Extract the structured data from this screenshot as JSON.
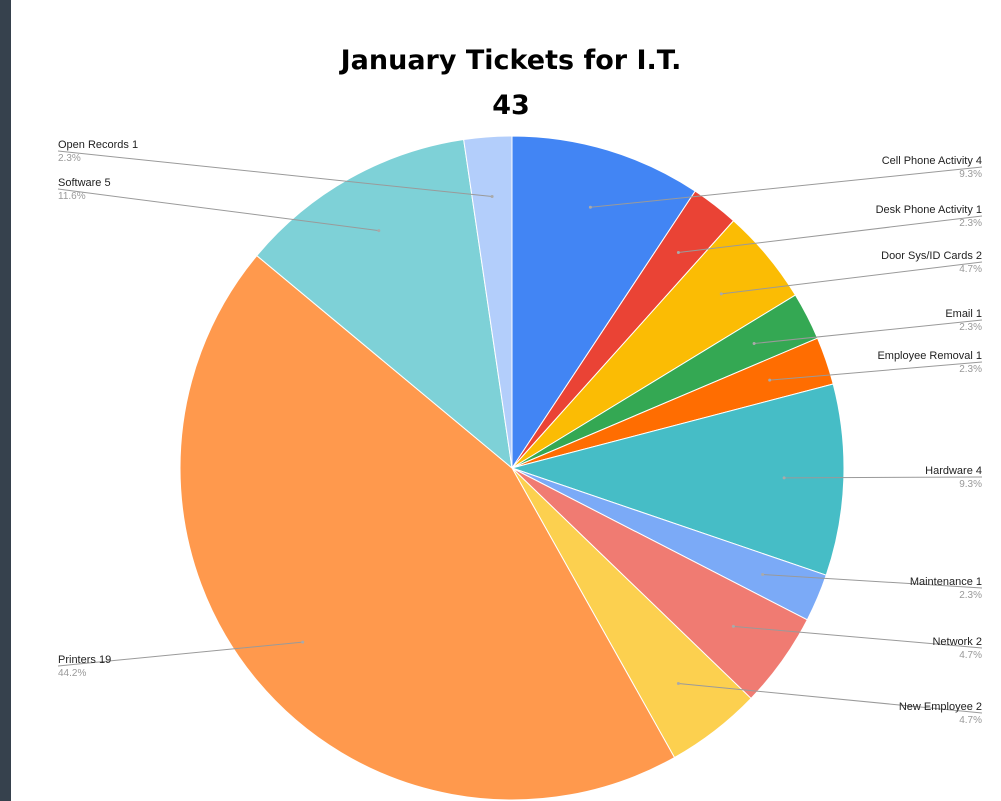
{
  "chart_data": {
    "type": "pie",
    "title": "January Tickets for I.T.",
    "subtitle": "43",
    "total": 43,
    "slices": [
      {
        "label": "Cell Phone Activity",
        "value": 4,
        "percent": "9.3%",
        "color": "#4285f4"
      },
      {
        "label": "Desk Phone Activity",
        "value": 1,
        "percent": "2.3%",
        "color": "#ea4335"
      },
      {
        "label": "Door Sys/ID Cards",
        "value": 2,
        "percent": "4.7%",
        "color": "#fbbc04"
      },
      {
        "label": "Email",
        "value": 1,
        "percent": "2.3%",
        "color": "#34a853"
      },
      {
        "label": "Employee Removal",
        "value": 1,
        "percent": "2.3%",
        "color": "#ff6d01"
      },
      {
        "label": "Hardware",
        "value": 4,
        "percent": "9.3%",
        "color": "#46bdc6"
      },
      {
        "label": "Maintenance",
        "value": 1,
        "percent": "2.3%",
        "color": "#7baaf7"
      },
      {
        "label": "Network",
        "value": 2,
        "percent": "4.7%",
        "color": "#f07b72"
      },
      {
        "label": "New Employee",
        "value": 2,
        "percent": "4.7%",
        "color": "#fcd04f"
      },
      {
        "label": "Printers",
        "value": 19,
        "percent": "44.2%",
        "color": "#ff994d"
      },
      {
        "label": "Software",
        "value": 5,
        "percent": "11.6%",
        "color": "#7ed1d7"
      },
      {
        "label": "Open Records",
        "value": 1,
        "percent": "2.3%",
        "color": "#b3cefb"
      }
    ]
  }
}
